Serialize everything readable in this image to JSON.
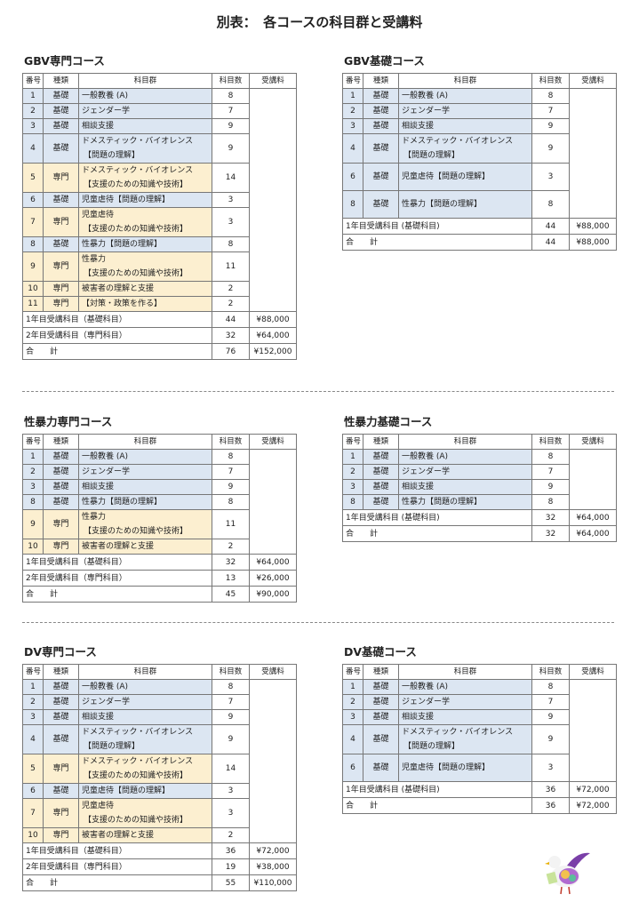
{
  "title": "別表：　各コースの科目群と受講料",
  "headers": [
    "番号",
    "種類",
    "科目群",
    "科目数",
    "受講料"
  ],
  "courses": [
    {
      "name": "GBV専門コース",
      "rows": [
        {
          "no": "1",
          "type": "基礎",
          "kind": "b",
          "subject": [
            "一般教養 (A)"
          ],
          "count": "8"
        },
        {
          "no": "2",
          "type": "基礎",
          "kind": "b",
          "subject": [
            "ジェンダー学"
          ],
          "count": "7"
        },
        {
          "no": "3",
          "type": "基礎",
          "kind": "b",
          "subject": [
            "相談支援"
          ],
          "count": "9"
        },
        {
          "no": "4",
          "type": "基礎",
          "kind": "b",
          "subject": [
            "ドメスティック・バイオレンス",
            "【問題の理解】"
          ],
          "count": "9"
        },
        {
          "no": "5",
          "type": "専門",
          "kind": "s",
          "subject": [
            "ドメスティック・バイオレンス",
            "【支援のための知識や技術】"
          ],
          "count": "14"
        },
        {
          "no": "6",
          "type": "基礎",
          "kind": "b",
          "subject": [
            "児童虐待【問題の理解】"
          ],
          "count": "3"
        },
        {
          "no": "7",
          "type": "専門",
          "kind": "s",
          "subject": [
            "児童虐待",
            "【支援のための知識や技術】"
          ],
          "count": "3"
        },
        {
          "no": "8",
          "type": "基礎",
          "kind": "b",
          "subject": [
            "性暴力【問題の理解】"
          ],
          "count": "8"
        },
        {
          "no": "9",
          "type": "専門",
          "kind": "s",
          "subject": [
            "性暴力",
            "【支援のための知識や技術】"
          ],
          "count": "11"
        },
        {
          "no": "10",
          "type": "専門",
          "kind": "s",
          "subject": [
            "被害者の理解と支援"
          ],
          "count": "2"
        },
        {
          "no": "11",
          "type": "専門",
          "kind": "s",
          "subject": [
            "【対策・政策を作る】"
          ],
          "count": "2"
        }
      ],
      "sums": [
        {
          "label": "1年目受講科目（基礎科目）",
          "count": "44",
          "fee": "¥88,000"
        },
        {
          "label": "2年目受講科目（専門科目）",
          "count": "32",
          "fee": "¥64,000"
        },
        {
          "label": "合　　計",
          "count": "76",
          "fee": "¥152,000"
        }
      ]
    },
    {
      "name": "GBV基礎コース",
      "rows": [
        {
          "no": "1",
          "type": "基礎",
          "kind": "b",
          "subject": [
            "一般教養 (A)"
          ],
          "count": "8"
        },
        {
          "no": "2",
          "type": "基礎",
          "kind": "b",
          "subject": [
            "ジェンダー学"
          ],
          "count": "7"
        },
        {
          "no": "3",
          "type": "基礎",
          "kind": "b",
          "subject": [
            "相談支援"
          ],
          "count": "9"
        },
        {
          "no": "4",
          "type": "基礎",
          "kind": "b",
          "subject": [
            "ドメスティック・バイオレンス",
            "【問題の理解】"
          ],
          "count": "9"
        },
        {
          "no": "6",
          "type": "基礎",
          "kind": "b",
          "subject": [
            "児童虐待【問題の理解】"
          ],
          "count": "3",
          "tall": true
        },
        {
          "no": "8",
          "type": "基礎",
          "kind": "b",
          "subject": [
            "性暴力【問題の理解】"
          ],
          "count": "8",
          "tall": true
        }
      ],
      "sums": [
        {
          "label": "1年目受講科目 (基礎科目)",
          "count": "44",
          "fee": "¥88,000"
        },
        {
          "label": "合　　計",
          "count": "44",
          "fee": "¥88,000"
        }
      ]
    },
    {
      "name": "性暴力専門コース",
      "rows": [
        {
          "no": "1",
          "type": "基礎",
          "kind": "b",
          "subject": [
            "一般教養 (A)"
          ],
          "count": "8"
        },
        {
          "no": "2",
          "type": "基礎",
          "kind": "b",
          "subject": [
            "ジェンダー学"
          ],
          "count": "7"
        },
        {
          "no": "3",
          "type": "基礎",
          "kind": "b",
          "subject": [
            "相談支援"
          ],
          "count": "9"
        },
        {
          "no": "8",
          "type": "基礎",
          "kind": "b",
          "subject": [
            "性暴力【問題の理解】"
          ],
          "count": "8"
        },
        {
          "no": "9",
          "type": "専門",
          "kind": "s",
          "subject": [
            "性暴力",
            "【支援のための知識や技術】"
          ],
          "count": "11"
        },
        {
          "no": "10",
          "type": "専門",
          "kind": "s",
          "subject": [
            "被害者の理解と支援"
          ],
          "count": "2"
        }
      ],
      "sums": [
        {
          "label": "1年目受講科目（基礎科目）",
          "count": "32",
          "fee": "¥64,000"
        },
        {
          "label": "2年目受講科目（専門科目）",
          "count": "13",
          "fee": "¥26,000"
        },
        {
          "label": "合　　計",
          "count": "45",
          "fee": "¥90,000"
        }
      ]
    },
    {
      "name": "性暴力基礎コース",
      "rows": [
        {
          "no": "1",
          "type": "基礎",
          "kind": "b",
          "subject": [
            "一般教養 (A)"
          ],
          "count": "8"
        },
        {
          "no": "2",
          "type": "基礎",
          "kind": "b",
          "subject": [
            "ジェンダー学"
          ],
          "count": "7"
        },
        {
          "no": "3",
          "type": "基礎",
          "kind": "b",
          "subject": [
            "相談支援"
          ],
          "count": "9"
        },
        {
          "no": "8",
          "type": "基礎",
          "kind": "b",
          "subject": [
            "性暴力【問題の理解】"
          ],
          "count": "8"
        }
      ],
      "sums": [
        {
          "label": "1年目受講科目 (基礎科目)",
          "count": "32",
          "fee": "¥64,000"
        },
        {
          "label": "合　　計",
          "count": "32",
          "fee": "¥64,000"
        }
      ]
    },
    {
      "name": "DV専門コース",
      "rows": [
        {
          "no": "1",
          "type": "基礎",
          "kind": "b",
          "subject": [
            "一般教養 (A)"
          ],
          "count": "8"
        },
        {
          "no": "2",
          "type": "基礎",
          "kind": "b",
          "subject": [
            "ジェンダー学"
          ],
          "count": "7"
        },
        {
          "no": "3",
          "type": "基礎",
          "kind": "b",
          "subject": [
            "相談支援"
          ],
          "count": "9"
        },
        {
          "no": "4",
          "type": "基礎",
          "kind": "b",
          "subject": [
            "ドメスティック・バイオレンス",
            "【問題の理解】"
          ],
          "count": "9"
        },
        {
          "no": "5",
          "type": "専門",
          "kind": "s",
          "subject": [
            "ドメスティック・バイオレンス",
            "【支援のための知識や技術】"
          ],
          "count": "14"
        },
        {
          "no": "6",
          "type": "基礎",
          "kind": "b",
          "subject": [
            "児童虐待【問題の理解】"
          ],
          "count": "3"
        },
        {
          "no": "7",
          "type": "専門",
          "kind": "s",
          "subject": [
            "児童虐待",
            "【支援のための知識や技術】"
          ],
          "count": "3"
        },
        {
          "no": "10",
          "type": "専門",
          "kind": "s",
          "subject": [
            "被害者の理解と支援"
          ],
          "count": "2"
        }
      ],
      "sums": [
        {
          "label": "1年目受講科目（基礎科目）",
          "count": "36",
          "fee": "¥72,000"
        },
        {
          "label": "2年目受講科目（専門科目）",
          "count": "19",
          "fee": "¥38,000"
        },
        {
          "label": "合　　計",
          "count": "55",
          "fee": "¥110,000"
        }
      ]
    },
    {
      "name": "DV基礎コース",
      "rows": [
        {
          "no": "1",
          "type": "基礎",
          "kind": "b",
          "subject": [
            "一般教養 (A)"
          ],
          "count": "8"
        },
        {
          "no": "2",
          "type": "基礎",
          "kind": "b",
          "subject": [
            "ジェンダー学"
          ],
          "count": "7"
        },
        {
          "no": "3",
          "type": "基礎",
          "kind": "b",
          "subject": [
            "相談支援"
          ],
          "count": "9"
        },
        {
          "no": "4",
          "type": "基礎",
          "kind": "b",
          "subject": [
            "ドメスティック・バイオレンス",
            "【問題の理解】"
          ],
          "count": "9"
        },
        {
          "no": "6",
          "type": "基礎",
          "kind": "b",
          "subject": [
            "児童虐待【問題の理解】"
          ],
          "count": "3",
          "tall": true
        }
      ],
      "sums": [
        {
          "label": "1年目受講科目 (基礎科目)",
          "count": "36",
          "fee": "¥72,000"
        },
        {
          "label": "合　　計",
          "count": "36",
          "fee": "¥72,000"
        }
      ]
    }
  ],
  "colors": {
    "basic": "#dce6f2",
    "special": "#fcefd0"
  },
  "logo": "bird-mascot"
}
